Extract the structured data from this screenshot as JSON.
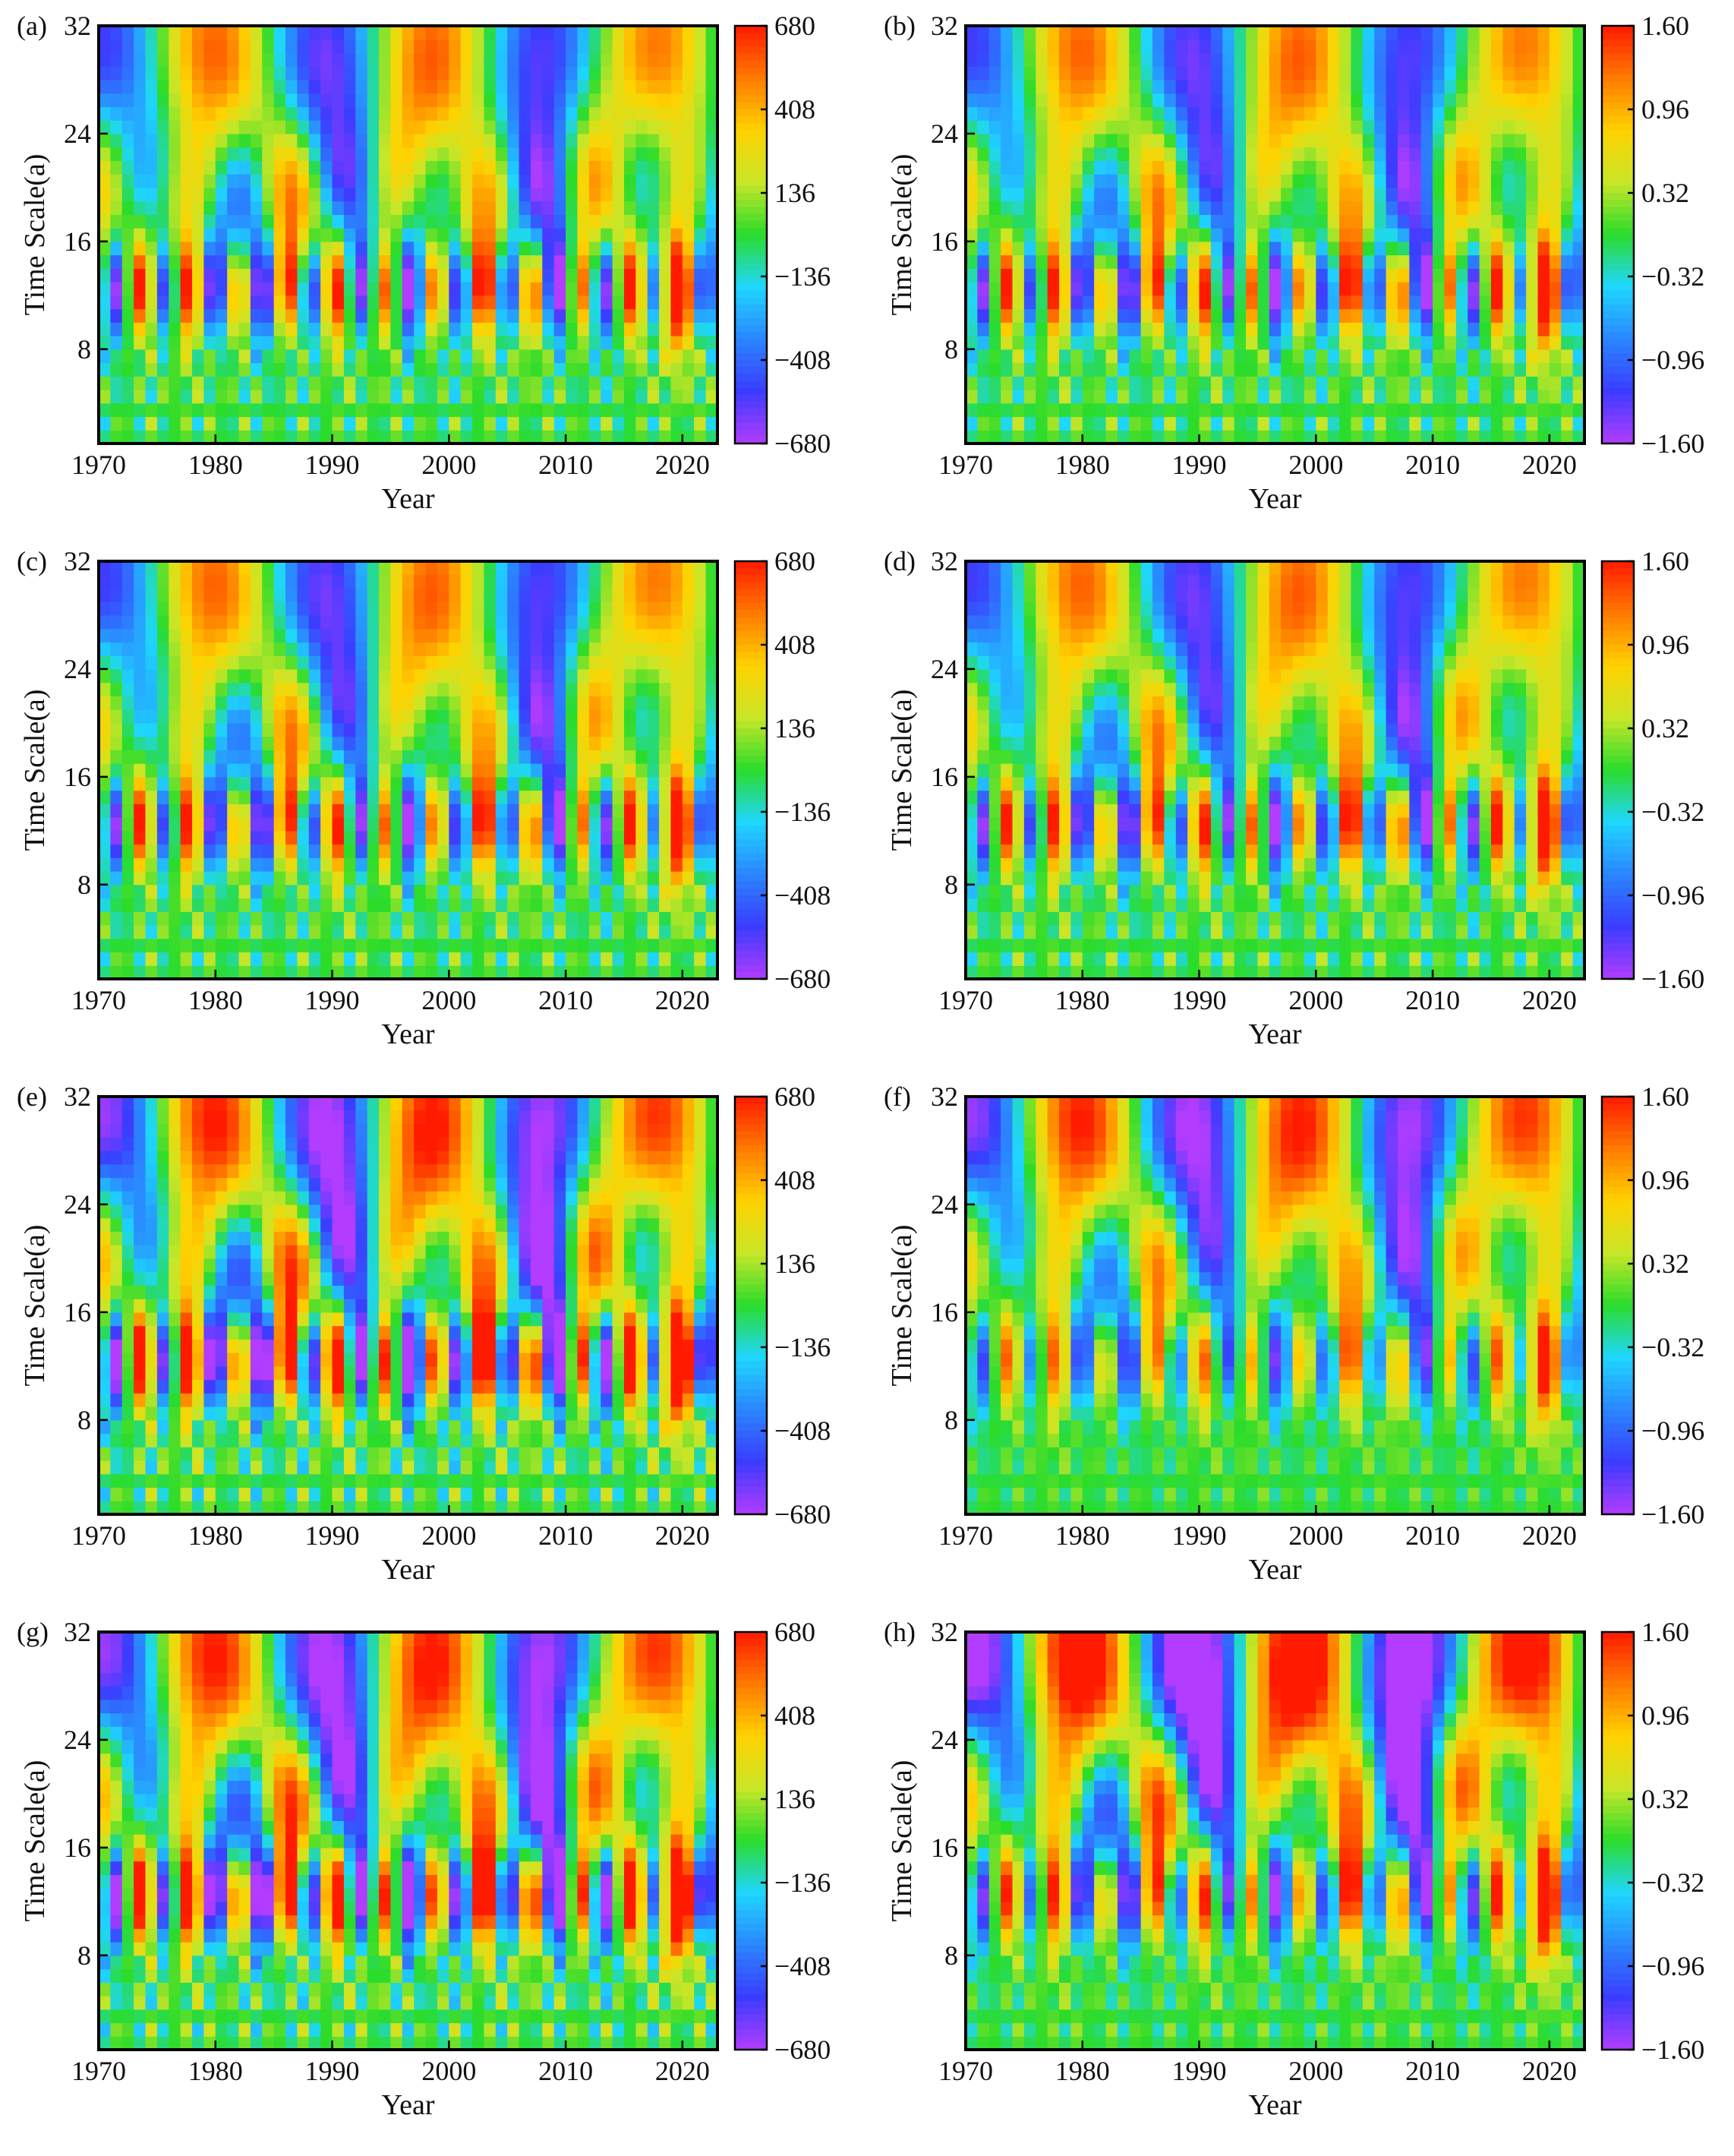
{
  "figure": {
    "rows": 4,
    "cols": 2
  },
  "chart_data": [
    {
      "type": "heatmap",
      "panel": "(a)",
      "title": "",
      "xlabel": "Year",
      "ylabel": "Time Scale(a)",
      "xlim": [
        1970,
        2023
      ],
      "ylim": [
        1,
        32
      ],
      "x_ticks": [
        "1970",
        "1980",
        "1990",
        "2000",
        "2010",
        "2020"
      ],
      "y_ticks": [
        "8",
        "16",
        "24",
        "32"
      ],
      "colorbar_ticks": [
        "680",
        "408",
        "136",
        "−136",
        "−408",
        "−680"
      ],
      "colorbar_range": [
        -680,
        680
      ],
      "colormap": [
        "#b23cff",
        "#3b3cff",
        "#2a86ff",
        "#1fd6ff",
        "#2bdc2b",
        "#c8e628",
        "#ffd200",
        "#ff7a00",
        "#ff1a00"
      ],
      "pattern": "mixed"
    },
    {
      "type": "heatmap",
      "panel": "(b)",
      "title": "",
      "xlabel": "Year",
      "ylabel": "Time Scale(a)",
      "xlim": [
        1970,
        2023
      ],
      "ylim": [
        1,
        32
      ],
      "x_ticks": [
        "1970",
        "1980",
        "1990",
        "2000",
        "2010",
        "2020"
      ],
      "y_ticks": [
        "8",
        "16",
        "24",
        "32"
      ],
      "colorbar_ticks": [
        "1.60",
        "0.96",
        "0.32",
        "−0.32",
        "−0.96",
        "−1.60"
      ],
      "colorbar_range": [
        -1.6,
        1.6
      ],
      "colormap": [
        "#b23cff",
        "#3b3cff",
        "#2a86ff",
        "#1fd6ff",
        "#2bdc2b",
        "#c8e628",
        "#ffd200",
        "#ff7a00",
        "#ff1a00"
      ],
      "pattern": "mixed-weak"
    },
    {
      "type": "heatmap",
      "panel": "(c)",
      "title": "",
      "xlabel": "Year",
      "ylabel": "Time Scale(a)",
      "xlim": [
        1970,
        2023
      ],
      "ylim": [
        1,
        32
      ],
      "x_ticks": [
        "1970",
        "1980",
        "1990",
        "2000",
        "2010",
        "2020"
      ],
      "y_ticks": [
        "8",
        "16",
        "24",
        "32"
      ],
      "colorbar_ticks": [
        "680",
        "408",
        "136",
        "−136",
        "−408",
        "−680"
      ],
      "colorbar_range": [
        -680,
        680
      ],
      "colormap": [
        "#b23cff",
        "#3b3cff",
        "#2a86ff",
        "#1fd6ff",
        "#2bdc2b",
        "#c8e628",
        "#ffd200",
        "#ff7a00",
        "#ff1a00"
      ],
      "pattern": "mixed"
    },
    {
      "type": "heatmap",
      "panel": "(d)",
      "title": "",
      "xlabel": "Year",
      "ylabel": "Time Scale(a)",
      "xlim": [
        1970,
        2023
      ],
      "ylim": [
        1,
        32
      ],
      "x_ticks": [
        "1970",
        "1980",
        "1990",
        "2000",
        "2010",
        "2020"
      ],
      "y_ticks": [
        "8",
        "16",
        "24",
        "32"
      ],
      "colorbar_ticks": [
        "1.60",
        "0.96",
        "0.32",
        "−0.32",
        "−0.96",
        "−1.60"
      ],
      "colorbar_range": [
        -1.6,
        1.6
      ],
      "colormap": [
        "#b23cff",
        "#3b3cff",
        "#2a86ff",
        "#1fd6ff",
        "#2bdc2b",
        "#c8e628",
        "#ffd200",
        "#ff7a00",
        "#ff1a00"
      ],
      "pattern": "mixed-weak"
    },
    {
      "type": "heatmap",
      "panel": "(e)",
      "title": "",
      "xlabel": "Year",
      "ylabel": "Time Scale(a)",
      "xlim": [
        1970,
        2023
      ],
      "ylim": [
        1,
        32
      ],
      "x_ticks": [
        "1970",
        "1980",
        "1990",
        "2000",
        "2010",
        "2020"
      ],
      "y_ticks": [
        "8",
        "16",
        "24",
        "32"
      ],
      "colorbar_ticks": [
        "680",
        "408",
        "136",
        "−136",
        "−408",
        "−680"
      ],
      "colorbar_range": [
        -680,
        680
      ],
      "colormap": [
        "#b23cff",
        "#3b3cff",
        "#2a86ff",
        "#1fd6ff",
        "#2bdc2b",
        "#c8e628",
        "#ffd200",
        "#ff7a00",
        "#ff1a00"
      ],
      "pattern": "mixed-strong"
    },
    {
      "type": "heatmap",
      "panel": "(f)",
      "title": "",
      "xlabel": "Year",
      "ylabel": "Time Scale(a)",
      "xlim": [
        1970,
        2023
      ],
      "ylim": [
        1,
        32
      ],
      "x_ticks": [
        "1970",
        "1980",
        "1990",
        "2000",
        "2010",
        "2020"
      ],
      "y_ticks": [
        "8",
        "16",
        "24",
        "32"
      ],
      "colorbar_ticks": [
        "1.60",
        "0.96",
        "0.32",
        "−0.32",
        "−0.96",
        "−1.60"
      ],
      "colorbar_range": [
        -1.6,
        1.6
      ],
      "colormap": [
        "#b23cff",
        "#3b3cff",
        "#2a86ff",
        "#1fd6ff",
        "#2bdc2b",
        "#c8e628",
        "#ffd200",
        "#ff7a00",
        "#ff1a00"
      ],
      "pattern": "long"
    },
    {
      "type": "heatmap",
      "panel": "(g)",
      "title": "",
      "xlabel": "Year",
      "ylabel": "Time Scale(a)",
      "xlim": [
        1970,
        2023
      ],
      "ylim": [
        1,
        32
      ],
      "x_ticks": [
        "1970",
        "1980",
        "1990",
        "2000",
        "2010",
        "2020"
      ],
      "y_ticks": [
        "8",
        "16",
        "24",
        "32"
      ],
      "colorbar_ticks": [
        "680",
        "408",
        "136",
        "−136",
        "−408",
        "−680"
      ],
      "colorbar_range": [
        -680,
        680
      ],
      "colormap": [
        "#b23cff",
        "#3b3cff",
        "#2a86ff",
        "#1fd6ff",
        "#2bdc2b",
        "#c8e628",
        "#ffd200",
        "#ff7a00",
        "#ff1a00"
      ],
      "pattern": "mixed-strong"
    },
    {
      "type": "heatmap",
      "panel": "(h)",
      "title": "",
      "xlabel": "Year",
      "ylabel": "Time Scale(a)",
      "xlim": [
        1970,
        2023
      ],
      "ylim": [
        1,
        32
      ],
      "x_ticks": [
        "1970",
        "1980",
        "1990",
        "2000",
        "2010",
        "2020"
      ],
      "y_ticks": [
        "8",
        "16",
        "24",
        "32"
      ],
      "colorbar_ticks": [
        "1.60",
        "0.96",
        "0.32",
        "−0.32",
        "−0.96",
        "−1.60"
      ],
      "colorbar_range": [
        -1.6,
        1.6
      ],
      "colormap": [
        "#b23cff",
        "#3b3cff",
        "#2a86ff",
        "#1fd6ff",
        "#2bdc2b",
        "#c8e628",
        "#ffd200",
        "#ff7a00",
        "#ff1a00"
      ],
      "pattern": "long-strong"
    }
  ]
}
